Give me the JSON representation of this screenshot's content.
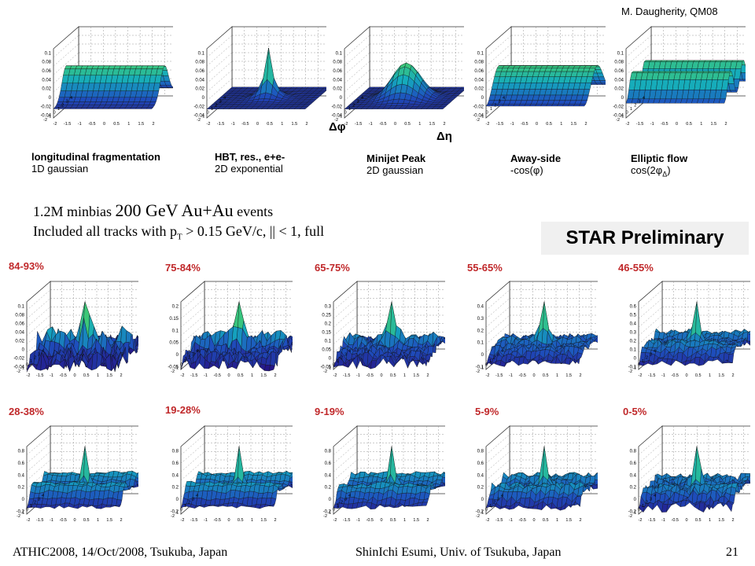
{
  "credit": "M. Daugherity, QM08",
  "axis_labels": {
    "dphi": "Δφ",
    "deta": "Δη"
  },
  "components": [
    {
      "title": "longitudinal fragmentation",
      "subtitle": "1D gaussian",
      "yticks": [
        "0.1",
        "0.08",
        "0.06",
        "0.04",
        "0.02",
        "0",
        "-0.02",
        "-0.04"
      ]
    },
    {
      "title": "HBT, res., e+e-",
      "subtitle": "2D exponential",
      "yticks": [
        "0.1",
        "0.08",
        "0.06",
        "0.04",
        "0.02",
        "0",
        "-0.02",
        "-0.04"
      ]
    },
    {
      "title": "Minijet Peak",
      "subtitle": "2D gaussian",
      "yticks": [
        "0.1",
        "0.08",
        "0.06",
        "0.04",
        "0.02",
        "0",
        "-0.02",
        "-0.04"
      ]
    },
    {
      "title": "Away-side",
      "subtitle": "-cos(φ)",
      "yticks": [
        "0.1",
        "0.08",
        "0.06",
        "0.04",
        "0.02",
        "0",
        "-0.02",
        "-0.04"
      ]
    },
    {
      "title": "Elliptic flow",
      "subtitle": "cos(2φ",
      "subtitle_sub": "Δ",
      "subtitle_end": ")",
      "yticks": [
        "0.1",
        "0.08",
        "0.06",
        "0.04",
        "0.02",
        "0",
        "-0.02",
        "-0.04"
      ]
    }
  ],
  "xticks": [
    "-2",
    "-1.5",
    "-1",
    "-0.5",
    "0",
    "0.5",
    "1",
    "1.5",
    "2"
  ],
  "zticks": [
    "4",
    "3",
    "2",
    "1",
    "0",
    "-1",
    "-2"
  ],
  "description": {
    "line1_a": "1.2M minbias ",
    "line1_b": "200 GeV Au+Au",
    "line1_c": " events",
    "line2_a": "Included all tracks with p",
    "line2_sub": "T",
    "line2_b": " > 0.15 GeV/c, |",
    "line2_c": "| < 1, full"
  },
  "preliminary": "STAR Preliminary",
  "centralities": [
    {
      "label": "84-93%",
      "yticks": [
        "0.1",
        "0.08",
        "0.06",
        "0.04",
        "0.02",
        "0",
        "-0.02",
        "-0.04"
      ]
    },
    {
      "label": "75-84%",
      "yticks": [
        "0.2",
        "0.15",
        "0.1",
        "0.05",
        "0",
        "-0.05"
      ]
    },
    {
      "label": "65-75%",
      "yticks": [
        "0.3",
        "0.25",
        "0.2",
        "0.15",
        "0.1",
        "0.05",
        "0",
        "-0.05"
      ]
    },
    {
      "label": "55-65%",
      "yticks": [
        "0.4",
        "0.3",
        "0.2",
        "0.1",
        "0",
        "-0.1"
      ]
    },
    {
      "label": "46-55%",
      "yticks": [
        "0.6",
        "0.5",
        "0.4",
        "0.3",
        "0.2",
        "0.1",
        "0",
        "-0.1"
      ]
    },
    {
      "label": "28-38%",
      "yticks": [
        "0.8",
        "0.6",
        "0.4",
        "0.2",
        "0",
        "-0.2"
      ]
    },
    {
      "label": "19-28%",
      "yticks": [
        "0.8",
        "0.6",
        "0.4",
        "0.2",
        "0",
        "-0.2"
      ]
    },
    {
      "label": "9-19%",
      "yticks": [
        "0.8",
        "0.6",
        "0.4",
        "0.2",
        "0",
        "-0.2"
      ]
    },
    {
      "label": "5-9%",
      "yticks": [
        "0.8",
        "0.6",
        "0.4",
        "0.2",
        "0",
        "-0.2"
      ]
    },
    {
      "label": "0-5%",
      "yticks": [
        "0.8",
        "0.6",
        "0.4",
        "0.2",
        "0",
        "-0.2"
      ]
    }
  ],
  "footer": {
    "left": "ATHIC2008, 14/Oct/2008, Tsukuba, Japan",
    "center": "ShinIchi Esumi, Univ. of Tsukuba, Japan",
    "page": "21"
  }
}
